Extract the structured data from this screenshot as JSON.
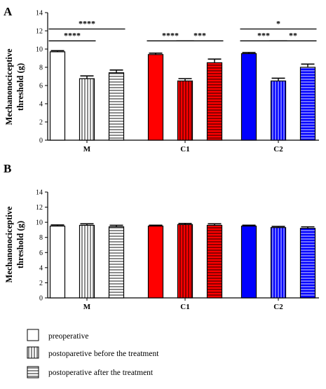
{
  "colors": {
    "M": "#ffffff",
    "C1": "#ff0000",
    "C2": "#0000ff",
    "stroke": "#000000"
  },
  "legend": [
    {
      "label": "preoperative",
      "pattern": "solid"
    },
    {
      "label": "postoparetive before the treatment",
      "pattern": "vertical"
    },
    {
      "label": "postoperative after the treatment",
      "pattern": "horizontal"
    }
  ],
  "chart_data": [
    {
      "panel": "A",
      "type": "bar",
      "ylabel": [
        "Mechanonociceptive",
        "threshold (g)"
      ],
      "ylim": [
        0,
        14
      ],
      "yticks": [
        0,
        2,
        4,
        6,
        8,
        10,
        12,
        14
      ],
      "categories": [
        "M",
        "C1",
        "C2"
      ],
      "series": [
        {
          "name": "preoperative",
          "pattern": "solid",
          "values": [
            9.7,
            9.4,
            9.5
          ],
          "errors": [
            0.12,
            0.15,
            0.12
          ]
        },
        {
          "name": "postoparetive before the treatment",
          "pattern": "vertical",
          "values": [
            6.75,
            6.5,
            6.5
          ],
          "errors": [
            0.3,
            0.25,
            0.3
          ]
        },
        {
          "name": "postoperative after the treatment",
          "pattern": "horizontal",
          "values": [
            7.4,
            8.5,
            8.0
          ],
          "errors": [
            0.3,
            0.4,
            0.35
          ]
        }
      ],
      "significance": [
        {
          "category": "M",
          "from": 0,
          "to": 1,
          "label": "****",
          "level": 0
        },
        {
          "category": "M",
          "from": 0,
          "to": 2,
          "label": "****",
          "level": 1
        },
        {
          "category": "C1",
          "from": 0,
          "to": 1,
          "label": "****",
          "level": 0
        },
        {
          "category": "C1",
          "from": 1,
          "to": 2,
          "label": "***",
          "level": 0
        },
        {
          "category": "C2",
          "from": 0,
          "to": 1,
          "label": "***",
          "level": 0
        },
        {
          "category": "C2",
          "from": 1,
          "to": 2,
          "label": "**",
          "level": 0
        },
        {
          "category": "C2",
          "from": 0,
          "to": 2,
          "label": "*",
          "level": 1
        }
      ]
    },
    {
      "panel": "B",
      "type": "bar",
      "ylabel": [
        "Mechanonociceptive",
        "threshold (g)"
      ],
      "ylim": [
        0,
        14
      ],
      "yticks": [
        0,
        2,
        4,
        6,
        8,
        10,
        12,
        14
      ],
      "categories": [
        "M",
        "C1",
        "C2"
      ],
      "series": [
        {
          "name": "preoperative",
          "pattern": "solid",
          "values": [
            9.5,
            9.5,
            9.5
          ],
          "errors": [
            0.15,
            0.12,
            0.12
          ]
        },
        {
          "name": "postoparetive before the treatment",
          "pattern": "vertical",
          "values": [
            9.6,
            9.7,
            9.3
          ],
          "errors": [
            0.2,
            0.15,
            0.15
          ]
        },
        {
          "name": "postoperative after the treatment",
          "pattern": "horizontal",
          "values": [
            9.4,
            9.6,
            9.2
          ],
          "errors": [
            0.2,
            0.2,
            0.2
          ]
        }
      ],
      "significance": []
    }
  ]
}
